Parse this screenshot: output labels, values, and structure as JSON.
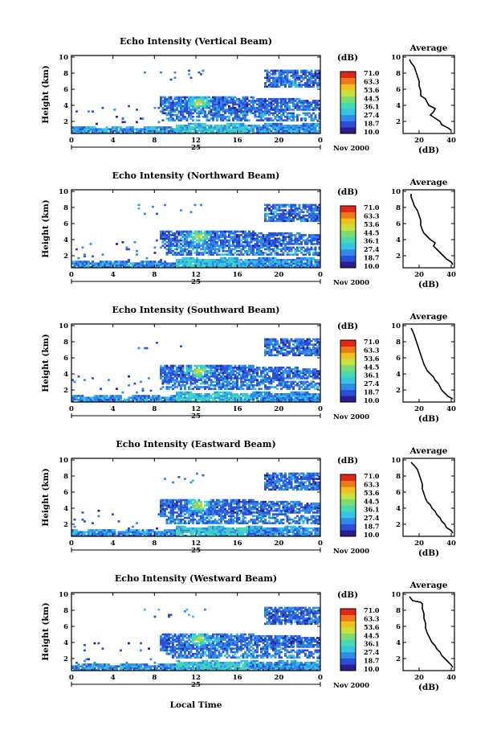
{
  "chart_data": [
    {
      "type": "heatmap",
      "title": "Echo Intensity (Vertical Beam)",
      "ylabel": "Height (km)",
      "avg_title": "Average",
      "avg_xlabel": "(dB)",
      "avg_xticks": [
        "20",
        "40"
      ],
      "avg_profile": [
        [
          9.7,
          14
        ],
        [
          9.3,
          15
        ],
        [
          8.8,
          17
        ],
        [
          8.2,
          18
        ],
        [
          7.6,
          19
        ],
        [
          7.0,
          20
        ],
        [
          6.4,
          20
        ],
        [
          5.8,
          21
        ],
        [
          5.2,
          21
        ],
        [
          4.8,
          24
        ],
        [
          4.4,
          25
        ],
        [
          4.0,
          26
        ],
        [
          3.6,
          30
        ],
        [
          3.2,
          29
        ],
        [
          2.8,
          27
        ],
        [
          2.4,
          30
        ],
        [
          2.0,
          33
        ],
        [
          1.6,
          34
        ],
        [
          1.2,
          38
        ],
        [
          0.9,
          40
        ]
      ]
    },
    {
      "type": "heatmap",
      "title": "Echo Intensity (Northward Beam)",
      "ylabel": "Height (km)",
      "avg_title": "Average",
      "avg_xlabel": "(dB)",
      "avg_xticks": [
        "20",
        "40"
      ],
      "avg_profile": [
        [
          9.7,
          15
        ],
        [
          9.3,
          15
        ],
        [
          8.8,
          16
        ],
        [
          8.2,
          17
        ],
        [
          7.6,
          19
        ],
        [
          7.0,
          20
        ],
        [
          6.4,
          21
        ],
        [
          5.8,
          21
        ],
        [
          5.2,
          22
        ],
        [
          4.8,
          23
        ],
        [
          4.4,
          25
        ],
        [
          4.0,
          27
        ],
        [
          3.6,
          30
        ],
        [
          3.2,
          29
        ],
        [
          2.8,
          31
        ],
        [
          2.4,
          33
        ],
        [
          2.0,
          35
        ],
        [
          1.6,
          37
        ],
        [
          1.2,
          40
        ],
        [
          0.9,
          41
        ]
      ]
    },
    {
      "type": "heatmap",
      "title": "Echo Intensity (Southward Beam)",
      "ylabel": "Height (km)",
      "avg_title": "Average",
      "avg_xlabel": "(dB)",
      "avg_xticks": [
        "20",
        "40"
      ],
      "avg_profile": [
        [
          9.7,
          15
        ],
        [
          9.3,
          16
        ],
        [
          8.8,
          17
        ],
        [
          8.2,
          18
        ],
        [
          7.6,
          19
        ],
        [
          7.0,
          20
        ],
        [
          6.4,
          21
        ],
        [
          5.8,
          22
        ],
        [
          5.2,
          23
        ],
        [
          4.8,
          24
        ],
        [
          4.4,
          25
        ],
        [
          4.0,
          27
        ],
        [
          3.6,
          29
        ],
        [
          3.2,
          30
        ],
        [
          2.8,
          32
        ],
        [
          2.4,
          33
        ],
        [
          2.0,
          34
        ],
        [
          1.6,
          36
        ],
        [
          1.2,
          38
        ],
        [
          0.9,
          41
        ]
      ]
    },
    {
      "type": "heatmap",
      "title": "Echo Intensity (Eastward Beam)",
      "ylabel": "Height (km)",
      "avg_title": "Average",
      "avg_xlabel": "(dB)",
      "avg_xticks": [
        "20",
        "40"
      ],
      "avg_profile": [
        [
          9.7,
          15
        ],
        [
          9.3,
          17
        ],
        [
          8.8,
          19
        ],
        [
          8.2,
          20
        ],
        [
          7.6,
          21
        ],
        [
          7.0,
          22
        ],
        [
          6.4,
          22
        ],
        [
          5.8,
          23
        ],
        [
          5.2,
          24
        ],
        [
          4.8,
          25
        ],
        [
          4.4,
          27
        ],
        [
          4.0,
          28
        ],
        [
          3.6,
          30
        ],
        [
          3.2,
          31
        ],
        [
          2.8,
          33
        ],
        [
          2.4,
          34
        ],
        [
          2.0,
          36
        ],
        [
          1.6,
          37
        ],
        [
          1.2,
          40
        ],
        [
          0.9,
          41
        ]
      ]
    },
    {
      "type": "heatmap",
      "title": "Echo Intensity (Westward Beam)",
      "ylabel": "Height (km)",
      "avg_title": "Average",
      "avg_xlabel": "(dB)",
      "avg_xticks": [
        "20",
        "40"
      ],
      "avg_profile": [
        [
          9.7,
          14
        ],
        [
          9.2,
          16
        ],
        [
          9.0,
          21
        ],
        [
          8.8,
          22
        ],
        [
          8.2,
          22
        ],
        [
          7.6,
          23
        ],
        [
          7.0,
          23
        ],
        [
          6.4,
          24
        ],
        [
          5.8,
          24
        ],
        [
          5.2,
          25
        ],
        [
          4.8,
          26
        ],
        [
          4.4,
          27
        ],
        [
          4.0,
          28
        ],
        [
          3.6,
          30
        ],
        [
          3.2,
          31
        ],
        [
          2.8,
          33
        ],
        [
          2.4,
          34
        ],
        [
          2.0,
          36
        ],
        [
          1.6,
          38
        ],
        [
          1.2,
          40
        ],
        [
          0.9,
          41
        ]
      ]
    }
  ],
  "axes": {
    "x_ticks": [
      "0",
      "4",
      "8",
      "12",
      "16",
      "20",
      "0"
    ],
    "x_tick_values": [
      0,
      4,
      8,
      12,
      16,
      20,
      24
    ],
    "xlim": [
      0,
      24
    ],
    "y_ticks": [
      "2",
      "4",
      "6",
      "8",
      "10"
    ],
    "y_tick_values": [
      2,
      4,
      6,
      8,
      10
    ],
    "ylim": [
      0.5,
      10.2
    ],
    "day_label": "25",
    "date_label": "Nov 2000",
    "xlabel": "Local Time",
    "avg_xlim": [
      10,
      42
    ]
  },
  "colorbar": {
    "label": "(dB)",
    "values": [
      "71.0",
      "63.3",
      "53.6",
      "44.5",
      "36.1",
      "27.4",
      "18.7",
      "10.0"
    ],
    "range": [
      10.0,
      71.0
    ],
    "colors": [
      "#2b1d8a",
      "#2c4ed8",
      "#2f8ae8",
      "#37c4e0",
      "#46d9b2",
      "#7ddc6e",
      "#c8e040",
      "#f0c020",
      "#f07818",
      "#e02818"
    ]
  }
}
